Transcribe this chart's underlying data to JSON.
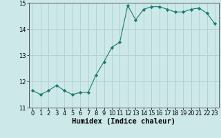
{
  "x": [
    0,
    1,
    2,
    3,
    4,
    5,
    6,
    7,
    8,
    9,
    10,
    11,
    12,
    13,
    14,
    15,
    16,
    17,
    18,
    19,
    20,
    21,
    22,
    23
  ],
  "y": [
    11.65,
    11.5,
    11.65,
    11.85,
    11.65,
    11.5,
    11.58,
    11.58,
    12.25,
    12.75,
    13.3,
    13.5,
    14.9,
    14.35,
    14.75,
    14.85,
    14.85,
    14.75,
    14.65,
    14.65,
    14.75,
    14.8,
    14.6,
    14.2
  ],
  "line_color": "#1a7a6e",
  "marker": "D",
  "marker_size": 2.2,
  "bg_color": "#cce8e8",
  "grid_color": "#b0cfcf",
  "xlabel": "Humidex (Indice chaleur)",
  "ylim": [
    11,
    15
  ],
  "xlim": [
    -0.5,
    23.5
  ],
  "yticks": [
    11,
    12,
    13,
    14,
    15
  ],
  "xticks": [
    0,
    1,
    2,
    3,
    4,
    5,
    6,
    7,
    8,
    9,
    10,
    11,
    12,
    13,
    14,
    15,
    16,
    17,
    18,
    19,
    20,
    21,
    22,
    23
  ],
  "tick_fontsize": 6,
  "xlabel_fontsize": 7.5
}
